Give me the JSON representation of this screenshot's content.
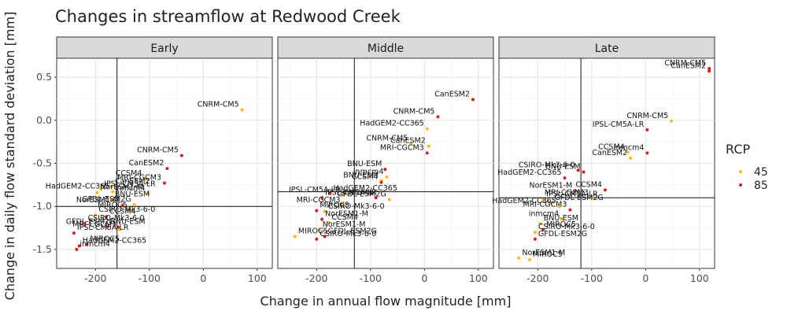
{
  "chart_data": {
    "type": "scatter",
    "title": "Changes in streamflow at Redwood Creek",
    "xlabel": "Change in annual flow magnitude [mm]",
    "ylabel": "Change in daily flow standard deviation [mm]",
    "xlim": [
      -272,
      128
    ],
    "ylim": [
      -1.72,
      0.72
    ],
    "x_ticks": [
      -200,
      -100,
      0,
      100
    ],
    "y_ticks": [
      -1.5,
      -1.0,
      -0.5,
      0.0,
      0.5
    ],
    "grid": true,
    "legend": {
      "title": "RCP",
      "position": "right",
      "entries": [
        "45",
        "85"
      ]
    },
    "colors": {
      "45": "#ffb90f",
      "85": "#d81b1b"
    },
    "panels": [
      {
        "name": "Early",
        "vline": -160,
        "hline": -1.0,
        "points": [
          {
            "label": "CNRM-CM5",
            "rcp": "45",
            "x": 72,
            "y": 0.12
          },
          {
            "label": "CNRM-CM5",
            "rcp": "85",
            "x": -40,
            "y": -0.41
          },
          {
            "label": "CanESM2",
            "rcp": "85",
            "x": -67,
            "y": -0.56
          },
          {
            "label": "CCSM4",
            "rcp": "45",
            "x": -108,
            "y": -0.68
          },
          {
            "label": "MRI-CGCM3",
            "rcp": "85",
            "x": -72,
            "y": -0.73
          },
          {
            "label": "inmcm4",
            "rcp": "45",
            "x": -102,
            "y": -0.85
          },
          {
            "label": "IPSL-CM5A-LR",
            "rcp": "45",
            "x": -190,
            "y": -0.8
          },
          {
            "label": "CanESM2",
            "rcp": "45",
            "x": -170,
            "y": -0.77
          },
          {
            "label": "HadGEM2-CC365",
            "rcp": "45",
            "x": -168,
            "y": -0.83
          },
          {
            "label": "NorESM1-M",
            "rcp": "45",
            "x": -197,
            "y": -0.84
          },
          {
            "label": "BNU-ESM",
            "rcp": "45",
            "x": -170,
            "y": -0.92
          },
          {
            "label": "NorESM1-M",
            "rcp": "85",
            "x": -150,
            "y": -0.99
          },
          {
            "label": "GFDL-ESM2G",
            "rcp": "45",
            "x": -128,
            "y": -0.98
          },
          {
            "label": "MIROC5",
            "rcp": "45",
            "x": -135,
            "y": -1.05
          },
          {
            "label": "CSIRO-Mk3-6-0",
            "rcp": "45",
            "x": -200,
            "y": -1.1
          },
          {
            "label": "CCSM4",
            "rcp": "85",
            "x": -180,
            "y": -1.12
          },
          {
            "label": "MRI-CGCM3",
            "rcp": "45",
            "x": -155,
            "y": -1.27
          },
          {
            "label": "GFDL-ESM2G",
            "rcp": "85",
            "x": -158,
            "y": -1.24
          },
          {
            "label": "BNU-ESM",
            "rcp": "85",
            "x": -178,
            "y": -1.24
          },
          {
            "label": "IPSL-CM5A-LR",
            "rcp": "85",
            "x": -240,
            "y": -1.31
          },
          {
            "label": "CSIRO-Mk3-6-0",
            "rcp": "85",
            "x": -220,
            "y": -1.2
          },
          {
            "label": "MIROC5",
            "rcp": "85",
            "x": -216,
            "y": -1.44
          },
          {
            "label": "inmcm4",
            "rcp": "85",
            "x": -235,
            "y": -1.5
          },
          {
            "label": "HadGEM2-CC365",
            "rcp": "85",
            "x": -230,
            "y": -1.46
          }
        ]
      },
      {
        "name": "Middle",
        "vline": -130,
        "hline": -0.83,
        "points": [
          {
            "label": "CanESM2",
            "rcp": "85",
            "x": 90,
            "y": 0.24
          },
          {
            "label": "CNRM-CM5",
            "rcp": "85",
            "x": 25,
            "y": 0.04
          },
          {
            "label": "HadGEM2-CC365",
            "rcp": "45",
            "x": 5,
            "y": -0.1
          },
          {
            "label": "CNRM-CM5",
            "rcp": "45",
            "x": -25,
            "y": -0.27
          },
          {
            "label": "CanESM2",
            "rcp": "45",
            "x": 8,
            "y": -0.3
          },
          {
            "label": "MRI-CGCM3",
            "rcp": "85",
            "x": 5,
            "y": -0.38
          },
          {
            "label": "BNU-ESM",
            "rcp": "85",
            "x": -73,
            "y": -0.57
          },
          {
            "label": "inmcm4",
            "rcp": "45",
            "x": -70,
            "y": -0.66
          },
          {
            "label": "BNU-ESM",
            "rcp": "45",
            "x": -80,
            "y": -0.7
          },
          {
            "label": "CCSM4",
            "rcp": "85",
            "x": -80,
            "y": -0.72
          },
          {
            "label": "HadGEM2-CC365",
            "rcp": "85",
            "x": -175,
            "y": -0.85
          },
          {
            "label": "inmcm4",
            "rcp": "85",
            "x": -90,
            "y": -0.9
          },
          {
            "label": "IPSL-CM5A-LR",
            "rcp": "45",
            "x": -150,
            "y": -0.87
          },
          {
            "label": "GFDL-ESM2G",
            "rcp": "45",
            "x": -65,
            "y": -0.92
          },
          {
            "label": "IPSL-CM5A-LR",
            "rcp": "85",
            "x": -190,
            "y": -0.9
          },
          {
            "label": "MRI-CGCM3",
            "rcp": "45",
            "x": -150,
            "y": -0.99
          },
          {
            "label": "CSIRO-Mk3-6-0",
            "rcp": "45",
            "x": -185,
            "y": -1.06
          },
          {
            "label": "MIROC5",
            "rcp": "85",
            "x": -200,
            "y": -1.05
          },
          {
            "label": "NorESM1-M",
            "rcp": "85",
            "x": -190,
            "y": -1.15
          },
          {
            "label": "CCSM4",
            "rcp": "45",
            "x": -178,
            "y": -1.19
          },
          {
            "label": "NorESM1-M",
            "rcp": "45",
            "x": -195,
            "y": -1.27
          },
          {
            "label": "GFDL-ESM2G",
            "rcp": "85",
            "x": -185,
            "y": -1.35
          },
          {
            "label": "CSIRO-Mk3-6-0",
            "rcp": "85",
            "x": -200,
            "y": -1.38
          },
          {
            "label": "MIROC5",
            "rcp": "45",
            "x": -240,
            "y": -1.35
          }
        ]
      },
      {
        "name": "Late",
        "vline": -120,
        "hline": -0.9,
        "points": [
          {
            "label": "CNRM-CM5",
            "rcp": "85",
            "x": 118,
            "y": 0.6
          },
          {
            "label": "CanESM2",
            "rcp": "85",
            "x": 118,
            "y": 0.57
          },
          {
            "label": "CNRM-CM5",
            "rcp": "45",
            "x": 48,
            "y": -0.01
          },
          {
            "label": "IPSL-CM5A-LR",
            "rcp": "85",
            "x": 3,
            "y": -0.11
          },
          {
            "label": "inmcm4",
            "rcp": "85",
            "x": 3,
            "y": -0.38
          },
          {
            "label": "CCSM4",
            "rcp": "45",
            "x": -33,
            "y": -0.37
          },
          {
            "label": "CanESM2",
            "rcp": "45",
            "x": -28,
            "y": -0.44
          },
          {
            "label": "CSIRO-Mk3-6-0",
            "rcp": "85",
            "x": -125,
            "y": -0.58
          },
          {
            "label": "BNU-ESM",
            "rcp": "85",
            "x": -115,
            "y": -0.6
          },
          {
            "label": "HadGEM2-CC365",
            "rcp": "85",
            "x": -150,
            "y": -0.67
          },
          {
            "label": "CCSM4",
            "rcp": "85",
            "x": -75,
            "y": -0.81
          },
          {
            "label": "NorESM1-M",
            "rcp": "85",
            "x": -130,
            "y": -0.82
          },
          {
            "label": "MRI-CGCM3",
            "rcp": "45",
            "x": -100,
            "y": -0.9
          },
          {
            "label": "IPSL-CM5A-LR",
            "rcp": "45",
            "x": -190,
            "y": -0.92
          },
          {
            "label": "GFDL-ESM2G",
            "rcp": "45",
            "x": -175,
            "y": -0.96
          },
          {
            "label": "HadGEM2-CC365",
            "rcp": "45",
            "x": -160,
            "y": -1.0
          },
          {
            "label": "MRI-CGCM3",
            "rcp": "85",
            "x": -140,
            "y": -1.04
          },
          {
            "label": "inmcm4",
            "rcp": "45",
            "x": -155,
            "y": -1.15
          },
          {
            "label": "BNU-ESM",
            "rcp": "45",
            "x": -195,
            "y": -1.2
          },
          {
            "label": "MIROC5",
            "rcp": "85",
            "x": -190,
            "y": -1.27
          },
          {
            "label": "CSIRO-Mk3-6-0",
            "rcp": "45",
            "x": -205,
            "y": -1.3
          },
          {
            "label": "GFDL-ESM2G",
            "rcp": "85",
            "x": -205,
            "y": -1.38
          },
          {
            "label": "NorESM1-M",
            "rcp": "45",
            "x": -235,
            "y": -1.6
          },
          {
            "label": "MIROC5",
            "rcp": "45",
            "x": -215,
            "y": -1.62
          }
        ]
      }
    ]
  }
}
